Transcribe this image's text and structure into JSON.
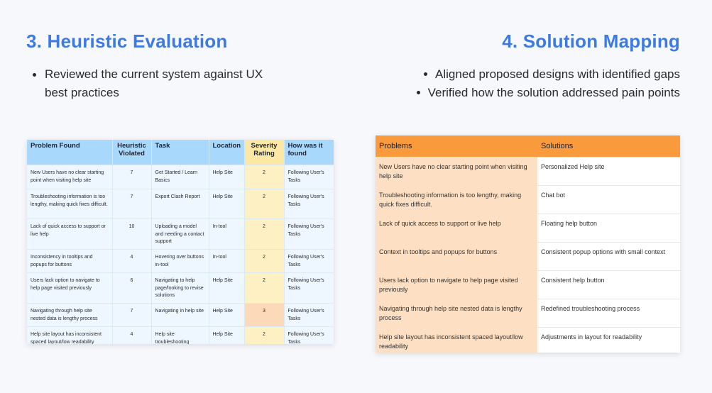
{
  "left": {
    "title": "3. Heuristic Evaluation",
    "bullets": [
      "Reviewed the current system against UX best practices"
    ],
    "table": {
      "headers": [
        "Problem Found",
        "Heuristic Violated",
        "Task",
        "Location",
        "Severity Rating",
        "How was it found"
      ],
      "rows": [
        [
          "New Users have no clear starting point when visiting help site",
          "7",
          "Get Started / Learn Basics",
          "Help Site",
          "2",
          "Following User's Tasks"
        ],
        [
          "Troubleshooting information is too lengthy, making quick fixes difficult.",
          "7",
          "Export Clash Report",
          "Help Site",
          "2",
          "Following User's Tasks"
        ],
        [
          "Lack of quick access to support or live help",
          "10",
          "Uploading a model and needing a contact support",
          "In-tool",
          "2",
          "Following User's Tasks"
        ],
        [
          "Inconsistency in tooltips and popups for buttons",
          "4",
          "Hovering over buttons in-tool",
          "In-tool",
          "2",
          "Following User's Tasks"
        ],
        [
          "Users lack option to navigate to help page visited previously",
          "6",
          "Navigating to help page/looking to revise solutions",
          "Help Site",
          "2",
          "Following User's Tasks"
        ],
        [
          "Navigating through help site nested data is lengthy process",
          "7",
          "Navigating in help site",
          "Help Site",
          "3",
          "Following User's Tasks"
        ],
        [
          "Help site layout has inconsistent spaced layout/low readability",
          "4",
          "Help site troubleshooting",
          "Help Site",
          "2",
          "Following User's Tasks"
        ]
      ]
    }
  },
  "right": {
    "title": "4. Solution Mapping",
    "bullets": [
      "Aligned proposed designs with identified gaps",
      "Verified how the solution addressed pain points"
    ],
    "table": {
      "headers": [
        "Problems",
        "Solutions"
      ],
      "rows": [
        [
          "New Users have no clear starting point when visiting help site",
          "Personalized Help site"
        ],
        [
          "Troubleshooting information is too lengthy, making quick fixes difficult.",
          "Chat bot"
        ],
        [
          "Lack of quick access to support or live help",
          "Floating help button"
        ],
        [
          "Context in tooltips and popups for buttons",
          "Consistent popup options with small context"
        ],
        [
          "Users lack option to navigate to help page visited previously",
          "Consistent help button"
        ],
        [
          "Navigating through help site nested data is lengthy process",
          "Redefined troubleshooting process"
        ],
        [
          "Help site layout has inconsistent spaced layout/low readability",
          "Adjustments in layout for readability"
        ]
      ]
    }
  }
}
